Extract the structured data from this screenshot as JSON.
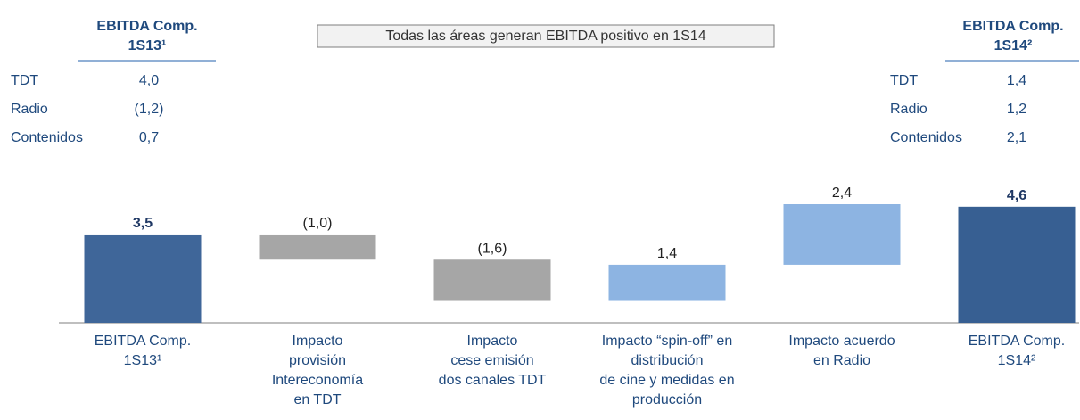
{
  "chart_data": {
    "type": "waterfall",
    "annotation": "Todas las áreas generan EBITDA positivo en 1S14",
    "categories": [
      [
        "EBITDA Comp.",
        "1S13¹"
      ],
      [
        "Impacto",
        "provisión",
        "Intereconomía",
        "en TDT"
      ],
      [
        "Impacto",
        "cese emisión",
        "dos canales TDT"
      ],
      [
        "Impacto “spin-off” en",
        "distribución",
        "de cine y medidas en",
        "producción"
      ],
      [
        "Impacto acuerdo",
        "en Radio"
      ],
      [
        "EBITDA Comp.",
        "1S14²"
      ]
    ],
    "values": [
      3.5,
      -1.0,
      -1.6,
      1.4,
      2.4,
      4.6
    ],
    "value_labels": [
      "3,5",
      "(1,0)",
      "(1,6)",
      "1,4",
      "2,4",
      "4,6"
    ],
    "is_total": [
      true,
      false,
      false,
      false,
      false,
      true
    ],
    "colors": [
      "#3f6699",
      "#a6a6a6",
      "#a6a6a6",
      "#8db4e2",
      "#8db4e2",
      "#375f92"
    ],
    "left_table": {
      "title": [
        "EBITDA Comp.",
        "1S13¹"
      ],
      "rows": [
        [
          "TDT",
          "4,0"
        ],
        [
          "Radio",
          "(1,2)"
        ],
        [
          "Contenidos",
          "0,7"
        ]
      ]
    },
    "right_table": {
      "title": [
        "EBITDA Comp.",
        "1S14²"
      ],
      "rows": [
        [
          "TDT",
          "1,4"
        ],
        [
          "Radio",
          "1,2"
        ],
        [
          "Contenidos",
          "2,1"
        ]
      ]
    }
  }
}
